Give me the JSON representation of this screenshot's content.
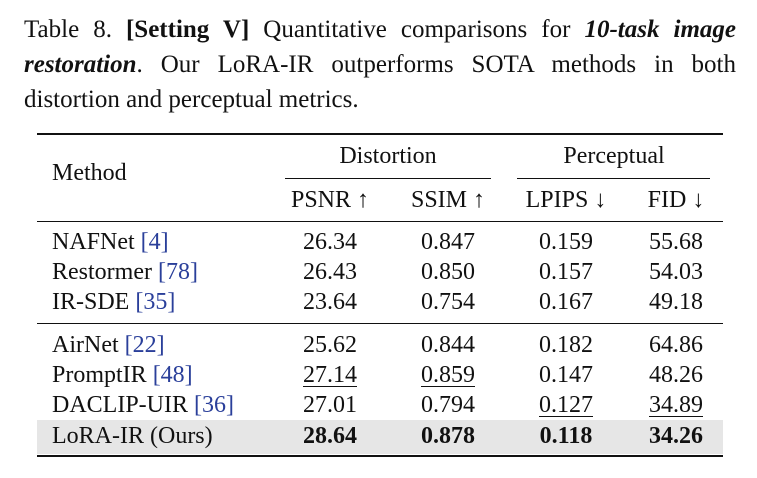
{
  "caption": {
    "table_label": "Table 8.",
    "setting": "[Setting V]",
    "text_a": " Quantitative comparisons for ",
    "task_emph": "10-task image restoration",
    "text_b": ".  Our LoRA-IR outperforms SOTA methods in both distortion and perceptual metrics."
  },
  "table": {
    "method_header": "Method",
    "group_headers": [
      "Distortion",
      "Perceptual"
    ],
    "metric_headers": [
      "PSNR ↑",
      "SSIM ↑",
      "LPIPS ↓",
      "FID ↓"
    ],
    "rows": [
      {
        "name": "NAFNet",
        "cite": "[4]",
        "values": [
          "26.34",
          "0.847",
          "0.159",
          "55.68"
        ]
      },
      {
        "name": "Restormer",
        "cite": "[78]",
        "values": [
          "26.43",
          "0.850",
          "0.157",
          "54.03"
        ]
      },
      {
        "name": "IR-SDE",
        "cite": "[35]",
        "values": [
          "23.64",
          "0.754",
          "0.167",
          "49.18"
        ]
      },
      {
        "name": "AirNet",
        "cite": "[22]",
        "values": [
          "25.62",
          "0.844",
          "0.182",
          "64.86"
        ]
      },
      {
        "name": "PromptIR",
        "cite": "[48]",
        "values": [
          "27.14",
          "0.859",
          "0.147",
          "48.26"
        ]
      },
      {
        "name": "DACLIP-UIR",
        "cite": "[36]",
        "values": [
          "27.01",
          "0.794",
          "0.127",
          "34.89"
        ]
      },
      {
        "name": "LoRA-IR (Ours)",
        "cite": "",
        "values": [
          "28.64",
          "0.878",
          "0.118",
          "34.26"
        ]
      }
    ]
  }
}
